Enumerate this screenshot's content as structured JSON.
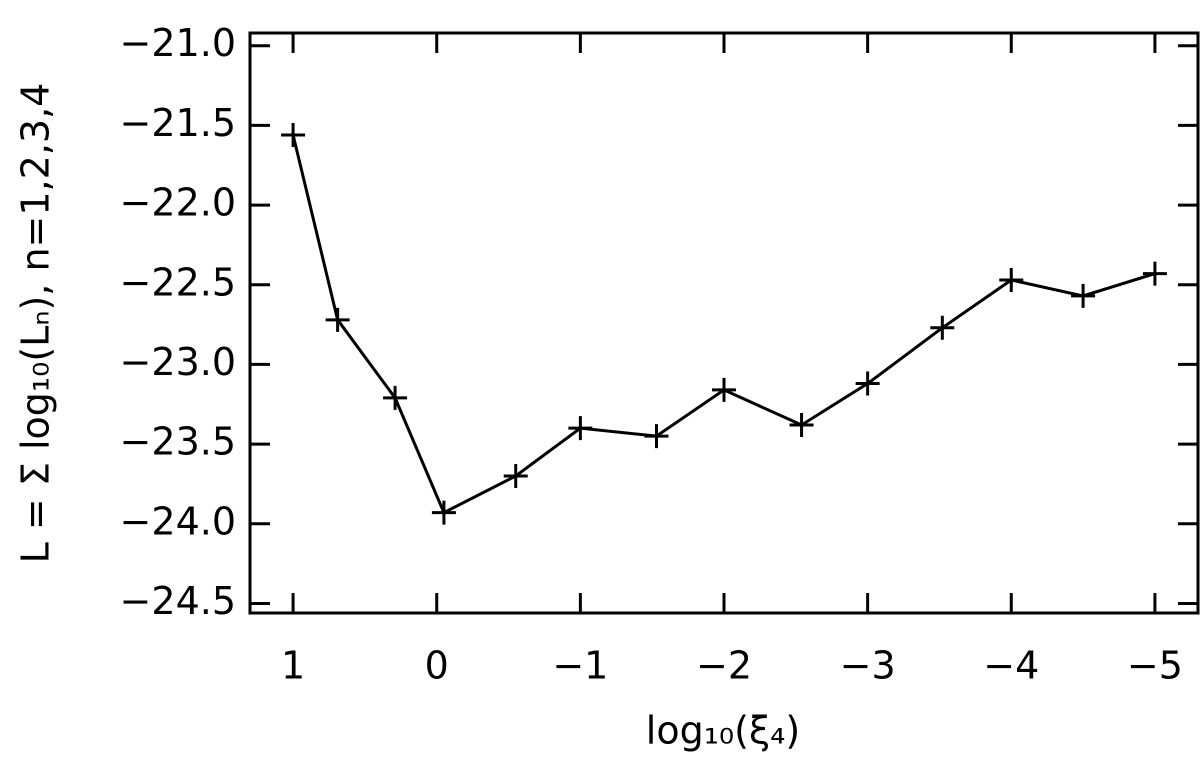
{
  "chart_data": {
    "type": "line",
    "xlabel": "log₁₀(ξ₄)",
    "ylabel": "L = Σ log₁₀(Lₙ),  n=1,2,3,4",
    "x": [
      1,
      0.69,
      0.29,
      -0.05,
      -0.55,
      -1,
      -1.53,
      -2,
      -2.54,
      -3,
      -3.52,
      -4,
      -4.5,
      -5
    ],
    "series": [
      {
        "color": "#000000",
        "values": [
          -21.56,
          -22.72,
          -23.21,
          -23.93,
          -23.7,
          -23.4,
          -23.45,
          -23.16,
          -23.38,
          -23.12,
          -22.77,
          -22.47,
          -22.57,
          -22.43
        ]
      }
    ],
    "xlim": [
      1.3,
      -5.3
    ],
    "ylim": [
      -24.56,
      -20.92
    ],
    "xticks": [
      1,
      0,
      {
        "value": -1,
        "label": "−1"
      },
      {
        "value": -2,
        "label": "−2"
      },
      {
        "value": -3,
        "label": "−3"
      },
      {
        "value": -4,
        "label": "−4"
      },
      {
        "value": -5,
        "label": "−5"
      }
    ],
    "yticks": [
      {
        "value": -21.0,
        "label": "−21.0"
      },
      {
        "value": -21.5,
        "label": "−21.5"
      },
      {
        "value": -22.0,
        "label": "−22.0"
      },
      {
        "value": -22.5,
        "label": "−22.5"
      },
      {
        "value": -23.0,
        "label": "−23.0"
      },
      {
        "value": -23.5,
        "label": "−23.5"
      },
      {
        "value": -24.0,
        "label": "−24.0"
      },
      {
        "value": -24.5,
        "label": "−24.5"
      }
    ],
    "markers": "plus"
  }
}
